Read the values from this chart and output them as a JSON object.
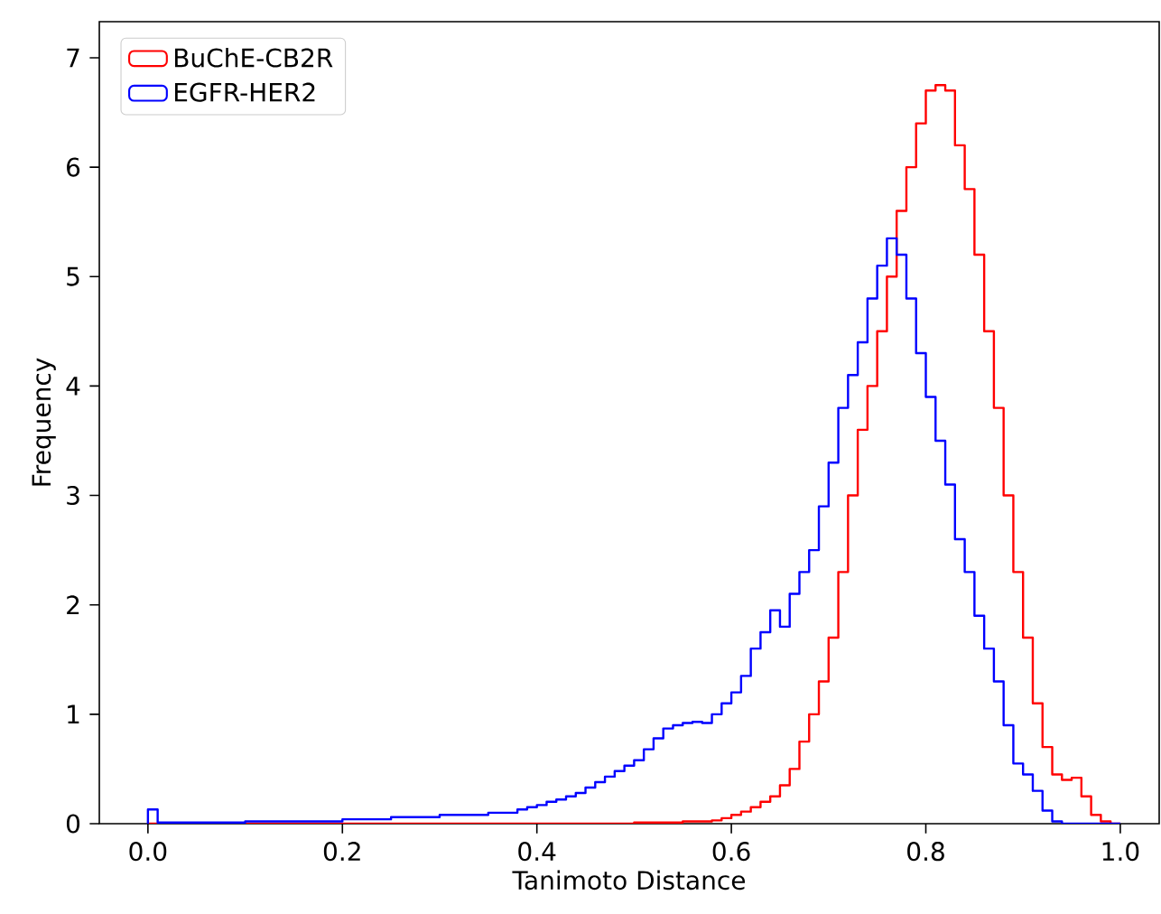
{
  "chart_data": {
    "type": "histogram",
    "xlabel": "Tanimoto Distance",
    "ylabel": "Frequency",
    "bins": [
      0,
      0.01,
      0.02,
      0.03,
      0.04,
      0.05,
      0.06,
      0.07,
      0.08,
      0.09,
      0.1,
      0.11,
      0.12,
      0.13,
      0.14,
      0.15,
      0.16,
      0.17,
      0.18,
      0.19,
      0.2,
      0.21,
      0.22,
      0.23,
      0.24,
      0.25,
      0.26,
      0.27,
      0.28,
      0.29,
      0.3,
      0.31,
      0.32,
      0.33,
      0.34,
      0.35,
      0.36,
      0.37,
      0.38,
      0.39,
      0.4,
      0.41,
      0.42,
      0.43,
      0.44,
      0.45,
      0.46,
      0.47,
      0.48,
      0.49,
      0.5,
      0.51,
      0.52,
      0.53,
      0.54,
      0.55,
      0.56,
      0.57,
      0.58,
      0.59,
      0.6,
      0.61,
      0.62,
      0.63,
      0.64,
      0.65,
      0.66,
      0.67,
      0.68,
      0.69,
      0.7,
      0.71,
      0.72,
      0.73,
      0.74,
      0.75,
      0.76,
      0.77,
      0.78,
      0.79,
      0.8,
      0.81,
      0.82,
      0.83,
      0.84,
      0.85,
      0.86,
      0.87,
      0.88,
      0.89,
      0.9,
      0.91,
      0.92,
      0.93,
      0.94,
      0.95,
      0.96,
      0.97,
      0.98,
      0.99,
      1.0
    ],
    "series": [
      {
        "name": "BuChE-CB2R",
        "color": "#ff0000",
        "values": [
          0,
          0,
          0,
          0,
          0,
          0,
          0,
          0,
          0,
          0,
          0,
          0,
          0,
          0,
          0,
          0,
          0,
          0,
          0,
          0,
          0,
          0,
          0,
          0,
          0,
          0,
          0,
          0,
          0,
          0,
          0,
          0,
          0,
          0,
          0,
          0,
          0,
          0,
          0,
          0,
          0,
          0,
          0,
          0,
          0,
          0,
          0,
          0,
          0,
          0,
          0.01,
          0.01,
          0.01,
          0.01,
          0.01,
          0.02,
          0.02,
          0.02,
          0.03,
          0.05,
          0.08,
          0.11,
          0.15,
          0.2,
          0.25,
          0.35,
          0.5,
          0.75,
          1.0,
          1.3,
          1.7,
          2.3,
          3.0,
          3.6,
          4.0,
          4.5,
          5.0,
          5.6,
          6.0,
          6.4,
          6.7,
          6.75,
          6.7,
          6.2,
          5.8,
          5.2,
          4.5,
          3.8,
          3.0,
          2.3,
          1.7,
          1.1,
          0.7,
          0.45,
          0.4,
          0.42,
          0.25,
          0.08,
          0.02,
          0
        ]
      },
      {
        "name": "EGFR-HER2",
        "color": "#0000ff",
        "values": [
          0.13,
          0.01,
          0.01,
          0.01,
          0.01,
          0.01,
          0.01,
          0.01,
          0.01,
          0.01,
          0.02,
          0.02,
          0.02,
          0.02,
          0.02,
          0.02,
          0.02,
          0.02,
          0.02,
          0.02,
          0.04,
          0.04,
          0.04,
          0.04,
          0.04,
          0.06,
          0.06,
          0.06,
          0.06,
          0.06,
          0.08,
          0.08,
          0.08,
          0.08,
          0.08,
          0.1,
          0.1,
          0.1,
          0.13,
          0.15,
          0.17,
          0.2,
          0.22,
          0.25,
          0.28,
          0.33,
          0.38,
          0.43,
          0.48,
          0.53,
          0.58,
          0.68,
          0.78,
          0.87,
          0.9,
          0.92,
          0.93,
          0.92,
          1.0,
          1.1,
          1.2,
          1.35,
          1.6,
          1.75,
          1.95,
          1.8,
          2.1,
          2.3,
          2.5,
          2.9,
          3.3,
          3.8,
          4.1,
          4.4,
          4.8,
          5.1,
          5.35,
          5.2,
          4.8,
          4.3,
          3.9,
          3.5,
          3.1,
          2.6,
          2.3,
          1.9,
          1.6,
          1.3,
          0.9,
          0.55,
          0.45,
          0.3,
          0.12,
          0.02,
          0,
          0,
          0,
          0,
          0,
          0
        ]
      }
    ],
    "xlim": [
      -0.05,
      1.04
    ],
    "ylim": [
      0,
      7.33
    ],
    "xticks": [
      {
        "value": 0,
        "label": "0.0"
      },
      0.2,
      0.4,
      0.6,
      0.8,
      {
        "value": 1,
        "label": "1.0"
      }
    ],
    "yticks": [
      0,
      1,
      2,
      3,
      4,
      5,
      6,
      7
    ],
    "legend": "top left"
  }
}
